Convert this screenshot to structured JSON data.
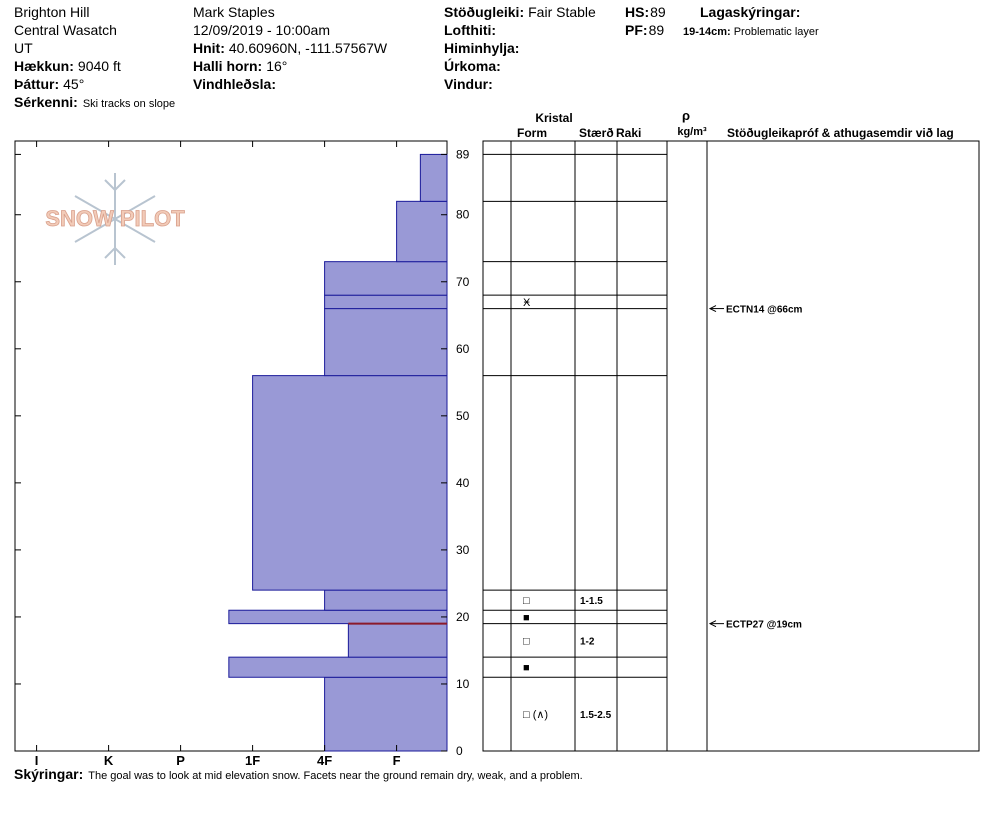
{
  "header": {
    "location": [
      "Brighton Hill",
      "Central Wasatch",
      "UT"
    ],
    "elevation": {
      "label": "Hækkun:",
      "value": "9040 ft"
    },
    "aspect": {
      "label": "Þáttur:",
      "value": "45°"
    },
    "features": {
      "label": "Sérkenni:",
      "value": "Ski tracks on slope"
    },
    "observer": "Mark Staples",
    "datetime": "12/09/2019 - 10:00am",
    "coords": {
      "label": "Hnit:",
      "value": "40.60960N, -111.57567W"
    },
    "slope": {
      "label": "Halli horn:",
      "value": "16°"
    },
    "wind_loading": {
      "label": "Vindhleðsla:"
    },
    "stability": {
      "label": "Stöðugleiki:",
      "value": "Fair Stable"
    },
    "air_temp": {
      "label": "Lofthiti:"
    },
    "sky": {
      "label": "Himinhylja:"
    },
    "precip": {
      "label": "Úrkoma:"
    },
    "wind": {
      "label": "Vindur:"
    },
    "hs": {
      "label": "HS:",
      "value": 89
    },
    "pf": {
      "label": "PF:",
      "value": 89
    },
    "layer_notes": {
      "label": "Lagaskýringar:",
      "items": [
        {
          "range": "19-14cm:",
          "text": "Problematic layer"
        }
      ]
    }
  },
  "logo": "SNOW PILOT",
  "chart_data": {
    "type": "snow-profile",
    "ylim": [
      0,
      91
    ],
    "yticks": [
      0,
      10,
      20,
      30,
      40,
      50,
      60,
      70,
      80,
      89
    ],
    "xlim": [
      0.3,
      6.3
    ],
    "xticks": [
      {
        "value": 6,
        "label": "I"
      },
      {
        "value": 5,
        "label": "K"
      },
      {
        "value": 4,
        "label": "P"
      },
      {
        "value": 3,
        "label": "1F"
      },
      {
        "value": 2,
        "label": "4F"
      },
      {
        "value": 1,
        "label": "F"
      }
    ],
    "color": "#9999d6",
    "layers": [
      {
        "bottom": 0,
        "top": 11,
        "hardness": 2,
        "form": "□ (∧)",
        "size": "1.5-2.5"
      },
      {
        "bottom": 11,
        "top": 14,
        "hardness": 3.33,
        "form": "■"
      },
      {
        "bottom": 14,
        "top": 19,
        "hardness": 1.67,
        "form": "□",
        "size": "1-2"
      },
      {
        "bottom": 19,
        "top": 21,
        "hardness": 3.33,
        "form": "■"
      },
      {
        "bottom": 21,
        "top": 24,
        "hardness": 2,
        "form": "□",
        "size": "1-1.5"
      },
      {
        "bottom": 24,
        "top": 56,
        "hardness": 3
      },
      {
        "bottom": 56,
        "top": 66,
        "hardness": 2
      },
      {
        "bottom": 66,
        "top": 68,
        "hardness": 2,
        "form": "Ӿ"
      },
      {
        "bottom": 68,
        "top": 73,
        "hardness": 2
      },
      {
        "bottom": 73,
        "top": 82,
        "hardness": 1
      },
      {
        "bottom": 82,
        "top": 89,
        "hardness": 0.67
      }
    ],
    "failure_height": 19,
    "failure_color": "#8b1a2a",
    "tests": [
      {
        "text": "ECTN14 @66cm",
        "height": 66
      },
      {
        "text": "ECTP27 @19cm",
        "height": 19
      }
    ],
    "table_headers": {
      "crystal": "Kristal",
      "form": "Form",
      "size": "Stærð",
      "moisture": "Raki",
      "rho": "ρ",
      "density_unit": "kg/m³",
      "comments": "Stöðugleikapróf & athugasemdir við lag"
    }
  },
  "footer": {
    "label": "Skýringar:",
    "value": "The goal was to look at mid elevation snow. Facets near the ground remain dry, weak, and a problem."
  }
}
